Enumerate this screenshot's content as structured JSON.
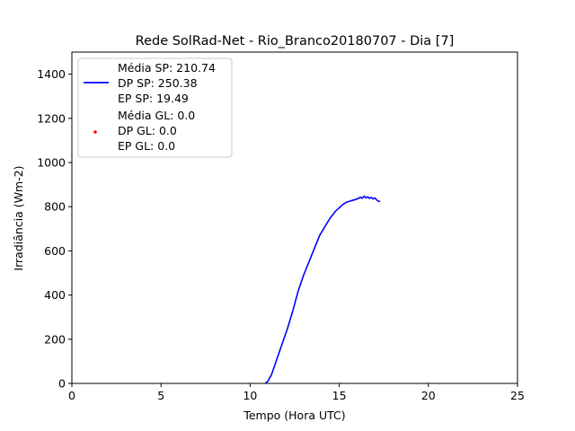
{
  "chart_data": {
    "type": "line",
    "title": "Rede SolRad-Net - Rio_Branco20180707 - Dia [7]",
    "xlabel": "Tempo (Hora UTC)",
    "ylabel": "Irradiância (Wm-2)",
    "xlim": [
      0,
      25
    ],
    "ylim": [
      0,
      1500
    ],
    "xticks": [
      0,
      5,
      10,
      15,
      20,
      25
    ],
    "yticks": [
      0,
      200,
      400,
      600,
      800,
      1000,
      1200,
      1400
    ],
    "grid": false,
    "legend_position": "upper-left",
    "series": [
      {
        "name": "",
        "legend_lines": [
          "Média SP: 210.74",
          "DP SP: 250.38",
          "EP SP: 19.49"
        ],
        "style": "line",
        "color": "#0000ff",
        "x": [
          10.85,
          11.0,
          11.2,
          11.5,
          11.8,
          12.1,
          12.4,
          12.7,
          13.0,
          13.3,
          13.6,
          13.9,
          14.2,
          14.5,
          14.8,
          15.0,
          15.2,
          15.4,
          15.6,
          15.8,
          16.0,
          16.2,
          16.3,
          16.4,
          16.5,
          16.6,
          16.7,
          16.8,
          16.9,
          17.0,
          17.1,
          17.2,
          17.3
        ],
        "y": [
          0,
          10,
          40,
          110,
          180,
          250,
          330,
          420,
          490,
          550,
          610,
          670,
          710,
          750,
          780,
          795,
          810,
          820,
          825,
          830,
          835,
          843,
          838,
          848,
          840,
          845,
          838,
          842,
          835,
          840,
          830,
          825,
          823
        ]
      },
      {
        "name": "",
        "legend_lines": [
          "Média GL: 0.0",
          "DP GL: 0.0",
          "EP GL: 0.0"
        ],
        "style": "scatter",
        "color": "#ff0000",
        "x": [],
        "y": []
      }
    ]
  }
}
